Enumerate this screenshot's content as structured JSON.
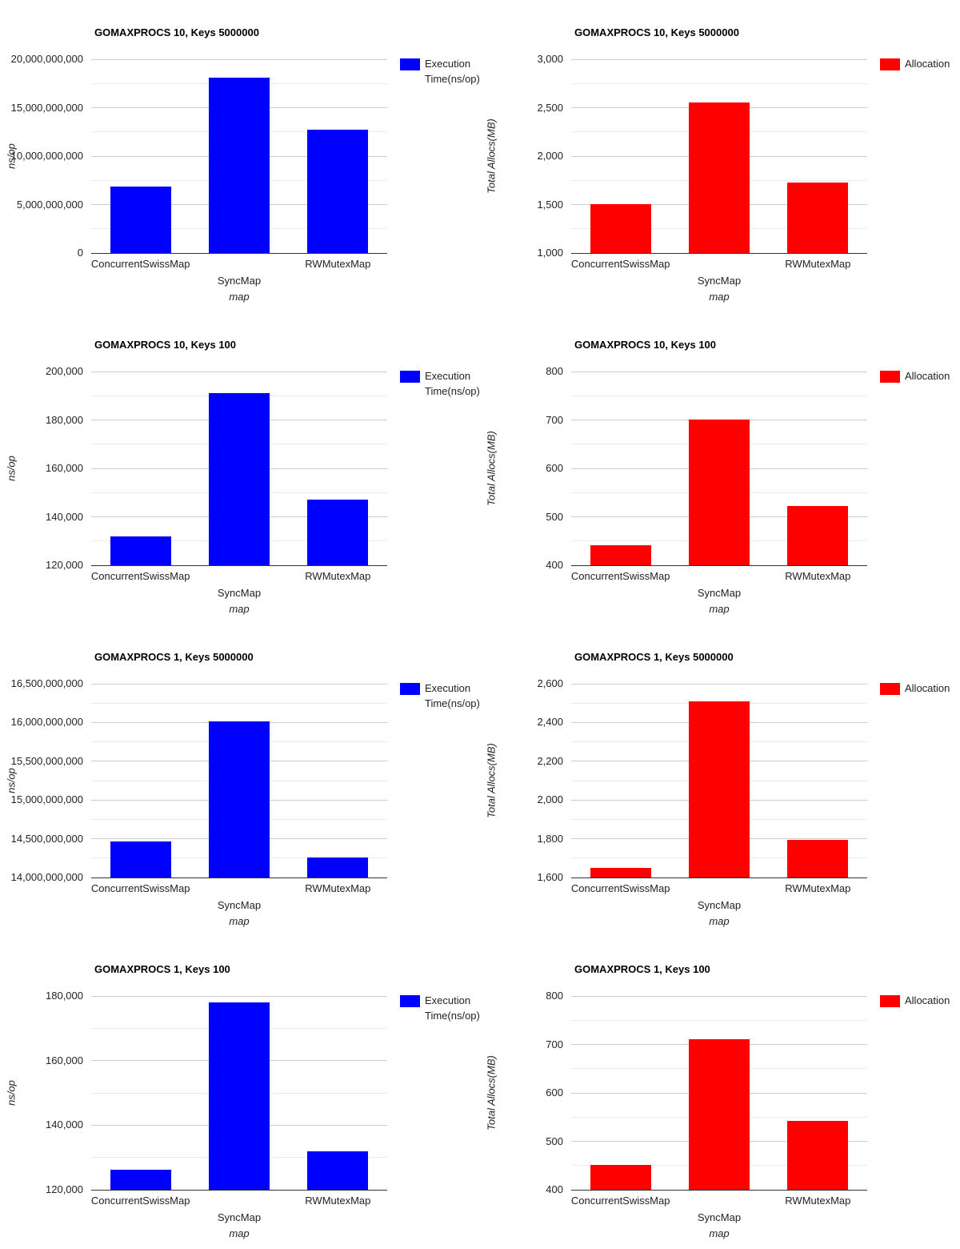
{
  "page": {
    "background": "#ffffff"
  },
  "chart_data": [
    {
      "type": "bar",
      "title": "GOMAXPROCS 10, Keys 5000000",
      "categories": [
        "ConcurrentSwissMap",
        "SyncMap",
        "RWMutexMap"
      ],
      "series": [
        {
          "name": "Execution Time(ns/op)",
          "values": [
            6850000000,
            18100000000,
            12750000000
          ]
        }
      ],
      "xlabel": "map",
      "ylabel": "ns/op",
      "ylim": [
        0,
        20000000000
      ],
      "yticks": [
        0,
        5000000000,
        10000000000,
        15000000000,
        20000000000
      ],
      "ytick_step": 5000000000,
      "minor_gridline_step": 2500000000,
      "bar_color": "#0000ff",
      "legend_position": "right",
      "grid": true
    },
    {
      "type": "bar",
      "title": "GOMAXPROCS 10, Keys 5000000",
      "categories": [
        "ConcurrentSwissMap",
        "SyncMap",
        "RWMutexMap"
      ],
      "series": [
        {
          "name": "Allocation",
          "values": [
            1505,
            2550,
            1730
          ]
        }
      ],
      "xlabel": "map",
      "ylabel": "Total Allocs(MB)",
      "ylim": [
        1000,
        3000
      ],
      "yticks": [
        1000,
        1500,
        2000,
        2500,
        3000
      ],
      "ytick_step": 500,
      "minor_gridline_step": 250,
      "bar_color": "#ff0000",
      "legend_position": "right",
      "grid": true
    },
    {
      "type": "bar",
      "title": "GOMAXPROCS 10, Keys 100",
      "categories": [
        "ConcurrentSwissMap",
        "SyncMap",
        "RWMutexMap"
      ],
      "series": [
        {
          "name": "Execution Time(ns/op)",
          "values": [
            132000,
            191000,
            147200
          ]
        }
      ],
      "xlabel": "map",
      "ylabel": "ns/op",
      "ylim": [
        120000,
        200000
      ],
      "yticks": [
        120000,
        140000,
        160000,
        180000,
        200000
      ],
      "ytick_step": 20000,
      "minor_gridline_step": 10000,
      "bar_color": "#0000ff",
      "legend_position": "right",
      "grid": true
    },
    {
      "type": "bar",
      "title": "GOMAXPROCS 10, Keys 100",
      "categories": [
        "ConcurrentSwissMap",
        "SyncMap",
        "RWMutexMap"
      ],
      "series": [
        {
          "name": "Allocation",
          "values": [
            441,
            701,
            523
          ]
        }
      ],
      "xlabel": "map",
      "ylabel": "Total Allocs(MB)",
      "ylim": [
        400,
        800
      ],
      "yticks": [
        400,
        500,
        600,
        700,
        800
      ],
      "ytick_step": 100,
      "minor_gridline_step": 50,
      "bar_color": "#ff0000",
      "legend_position": "right",
      "grid": true
    },
    {
      "type": "bar",
      "title": "GOMAXPROCS 1, Keys 5000000",
      "categories": [
        "ConcurrentSwissMap",
        "SyncMap",
        "RWMutexMap"
      ],
      "series": [
        {
          "name": "Execution Time(ns/op)",
          "values": [
            14470000000,
            16010000000,
            14260000000
          ]
        }
      ],
      "xlabel": "map",
      "ylabel": "ns/op",
      "ylim": [
        14000000000,
        16500000000
      ],
      "yticks": [
        14000000000,
        14500000000,
        15000000000,
        15500000000,
        16000000000,
        16500000000
      ],
      "ytick_step": 500000000,
      "minor_gridline_step": 250000000,
      "bar_color": "#0000ff",
      "legend_position": "right",
      "grid": true
    },
    {
      "type": "bar",
      "title": "GOMAXPROCS 1, Keys 5000000",
      "categories": [
        "ConcurrentSwissMap",
        "SyncMap",
        "RWMutexMap"
      ],
      "series": [
        {
          "name": "Allocation",
          "values": [
            1650,
            2510,
            1795
          ]
        }
      ],
      "xlabel": "map",
      "ylabel": "Total Allocs(MB)",
      "ylim": [
        1600,
        2600
      ],
      "yticks": [
        1600,
        1800,
        2000,
        2200,
        2400,
        2600
      ],
      "ytick_step": 200,
      "minor_gridline_step": 100,
      "bar_color": "#ff0000",
      "legend_position": "right",
      "grid": true
    },
    {
      "type": "bar",
      "title": "GOMAXPROCS 1, Keys 100",
      "categories": [
        "ConcurrentSwissMap",
        "SyncMap",
        "RWMutexMap"
      ],
      "series": [
        {
          "name": "Execution Time(ns/op)",
          "values": [
            126300,
            178000,
            131800
          ]
        }
      ],
      "xlabel": "map",
      "ylabel": "ns/op",
      "ylim": [
        120000,
        180000
      ],
      "yticks": [
        120000,
        140000,
        160000,
        180000
      ],
      "ytick_step": 20000,
      "minor_gridline_step": 10000,
      "bar_color": "#0000ff",
      "legend_position": "right",
      "grid": true
    },
    {
      "type": "bar",
      "title": "GOMAXPROCS 1, Keys 100",
      "categories": [
        "ConcurrentSwissMap",
        "SyncMap",
        "RWMutexMap"
      ],
      "series": [
        {
          "name": "Allocation",
          "values": [
            451,
            710,
            542
          ]
        }
      ],
      "xlabel": "map",
      "ylabel": "Total Allocs(MB)",
      "ylim": [
        400,
        800
      ],
      "yticks": [
        400,
        500,
        600,
        700,
        800
      ],
      "ytick_step": 100,
      "minor_gridline_step": 50,
      "bar_color": "#ff0000",
      "legend_position": "right",
      "grid": true
    }
  ]
}
